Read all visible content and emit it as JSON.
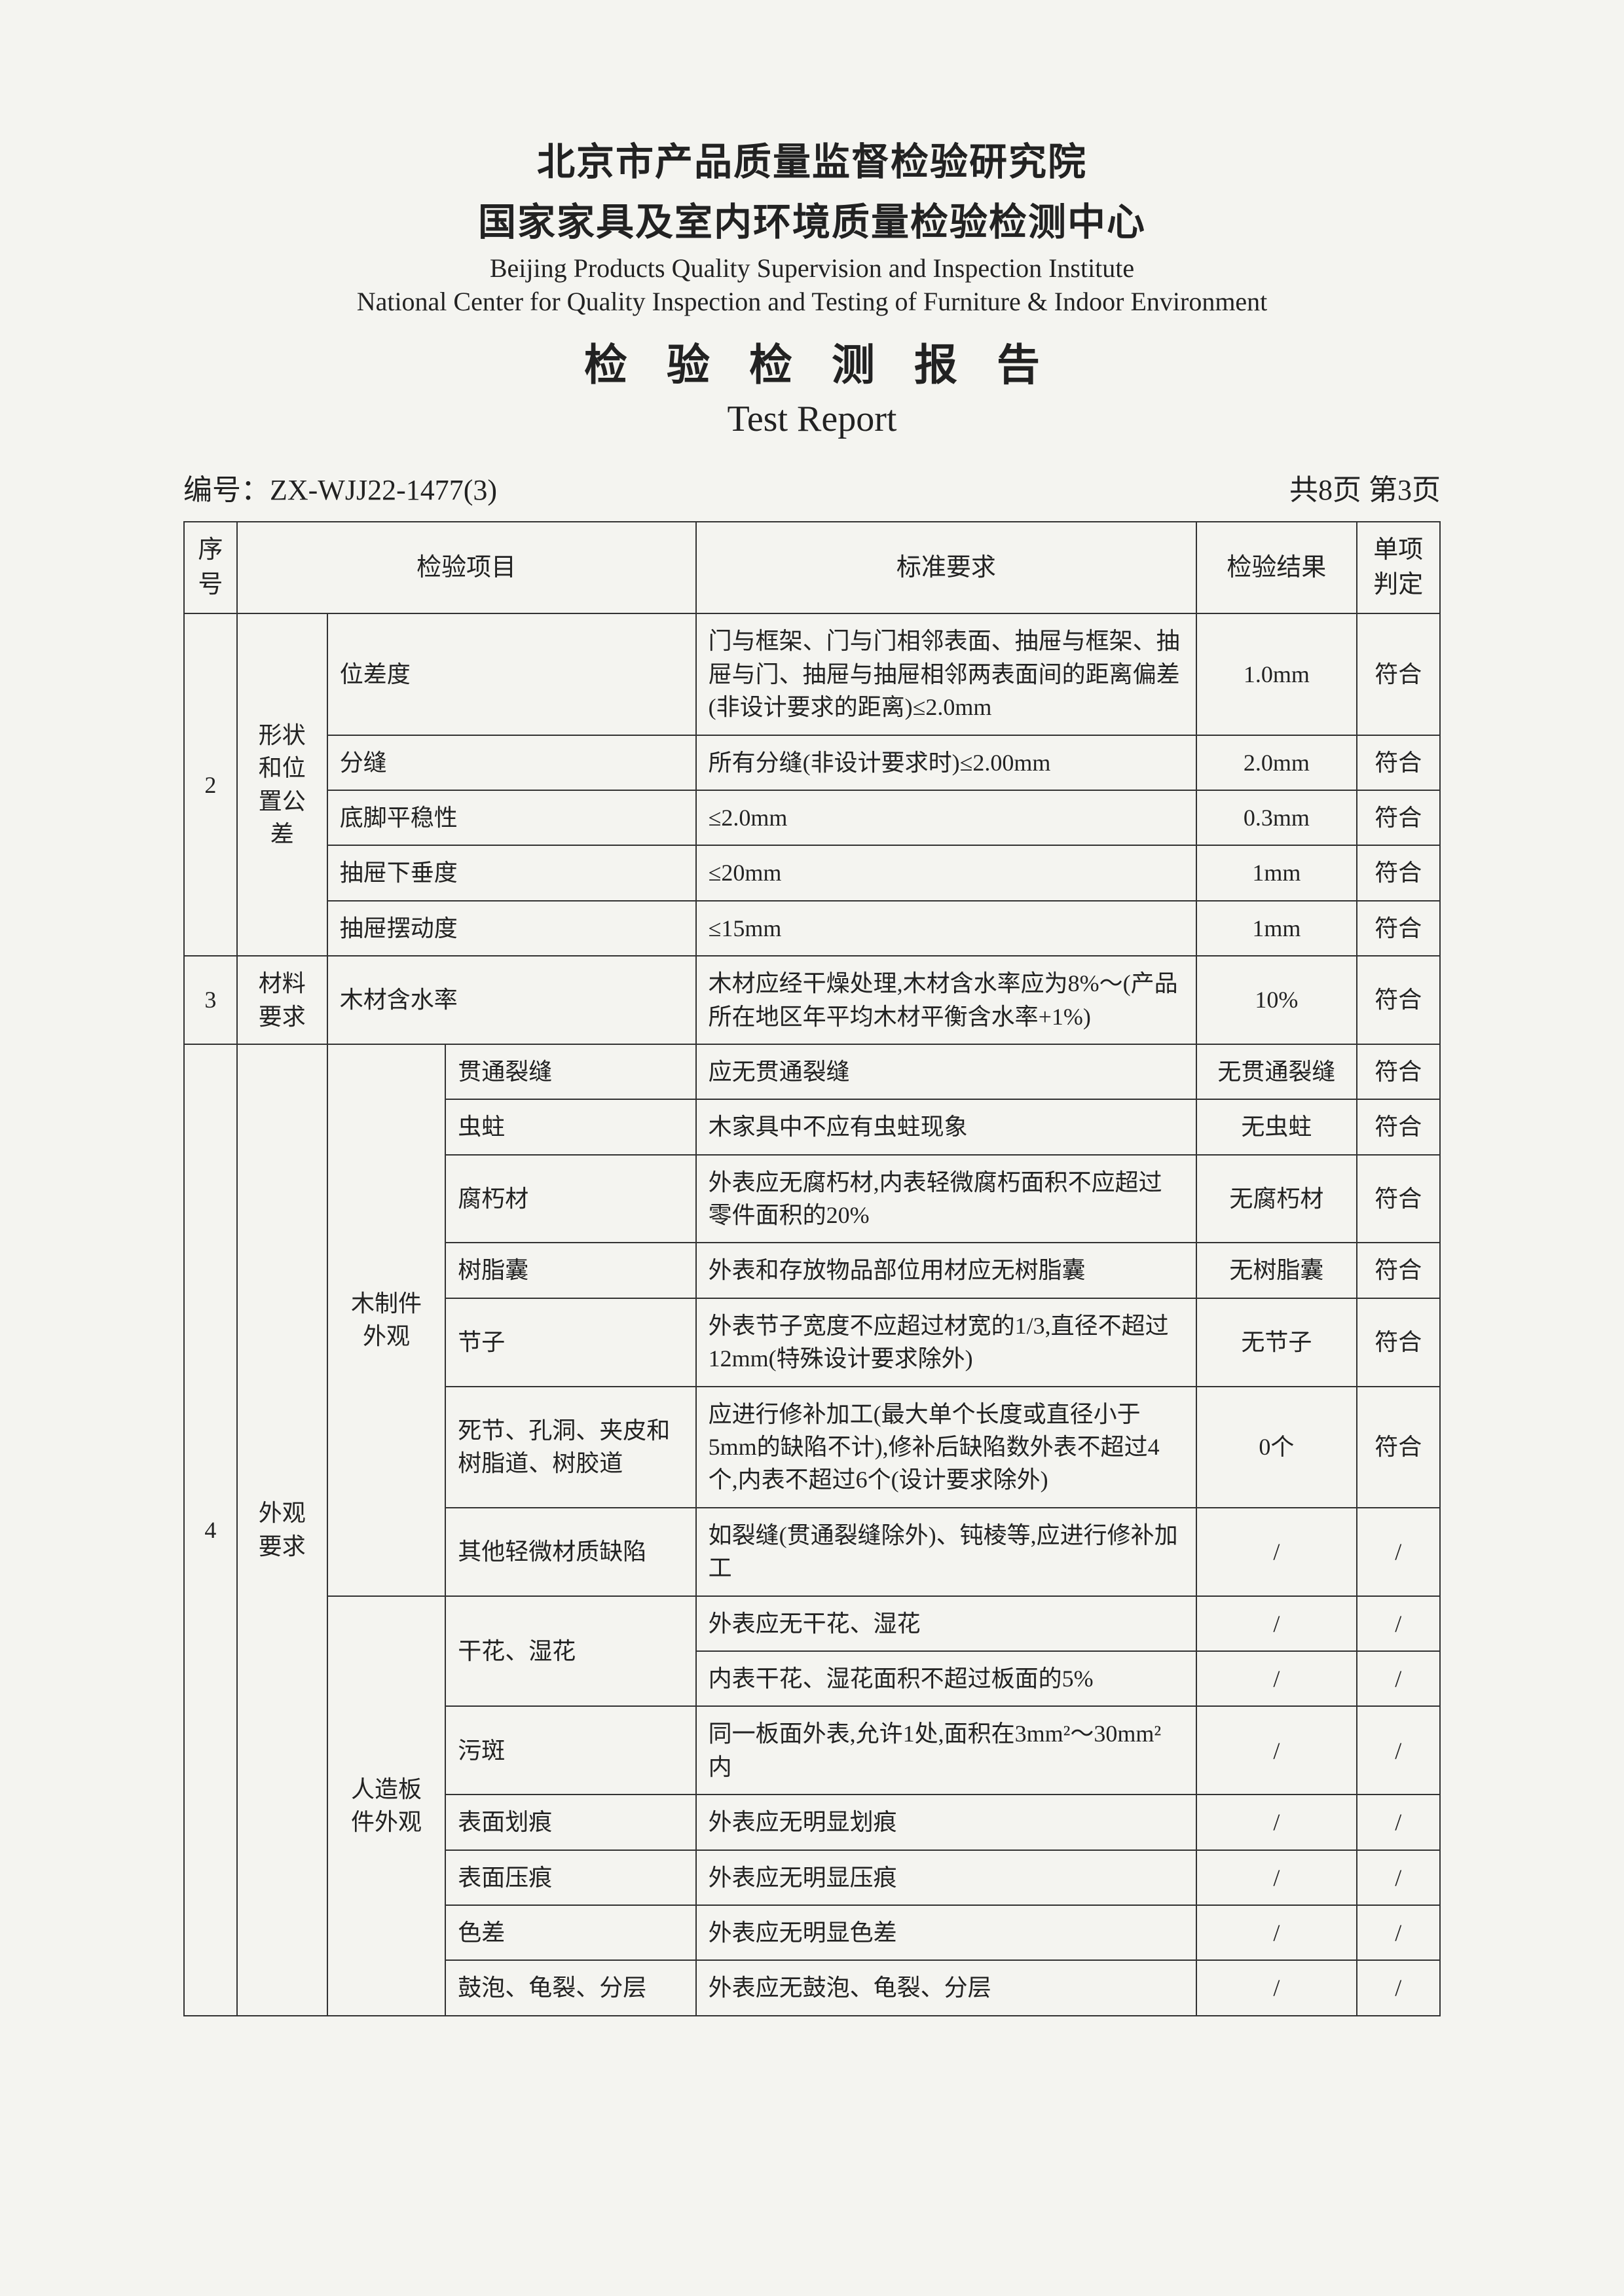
{
  "header": {
    "org_cn1": "北京市产品质量监督检验研究院",
    "org_cn2": "国家家具及室内环境质量检验检测中心",
    "org_en1": "Beijing Products Quality Supervision and Inspection Institute",
    "org_en2": "National Center for Quality Inspection and Testing of Furniture &  Indoor Environment",
    "title_cn": "检验检测报告",
    "title_en": "Test Report"
  },
  "meta": {
    "number_label": "编号：",
    "number": "ZX-WJJ22-1477(3)",
    "page": "共8页  第3页"
  },
  "columns": {
    "seq": "序号",
    "item": "检验项目",
    "req": "标准要求",
    "result": "检验结果",
    "judge": "单项判定"
  },
  "g2": {
    "seq": "2",
    "group": "形状和位置公差",
    "rows": [
      {
        "item": "位差度",
        "req": "门与框架、门与门相邻表面、抽屉与框架、抽屉与门、抽屉与抽屉相邻两表面间的距离偏差(非设计要求的距离)≤2.0mm",
        "result": "1.0mm",
        "judge": "符合"
      },
      {
        "item": "分缝",
        "req": "所有分缝(非设计要求时)≤2.00mm",
        "result": "2.0mm",
        "judge": "符合"
      },
      {
        "item": "底脚平稳性",
        "req": "≤2.0mm",
        "result": "0.3mm",
        "judge": "符合"
      },
      {
        "item": "抽屉下垂度",
        "req": "≤20mm",
        "result": "1mm",
        "judge": "符合"
      },
      {
        "item": "抽屉摆动度",
        "req": "≤15mm",
        "result": "1mm",
        "judge": "符合"
      }
    ]
  },
  "g3": {
    "seq": "3",
    "group": "材料要求",
    "item": "木材含水率",
    "req": "木材应经干燥处理,木材含水率应为8%～(产品所在地区年平均木材平衡含水率+1%)",
    "result": "10%",
    "judge": "符合"
  },
  "g4": {
    "seq": "4",
    "group": "外观要求",
    "sub1": {
      "label": "木制件外观",
      "rows": [
        {
          "item": "贯通裂缝",
          "req": "应无贯通裂缝",
          "result": "无贯通裂缝",
          "judge": "符合"
        },
        {
          "item": "虫蛀",
          "req": "木家具中不应有虫蛀现象",
          "result": "无虫蛀",
          "judge": "符合"
        },
        {
          "item": "腐朽材",
          "req": "外表应无腐朽材,内表轻微腐朽面积不应超过零件面积的20%",
          "result": "无腐朽材",
          "judge": "符合"
        },
        {
          "item": "树脂囊",
          "req": "外表和存放物品部位用材应无树脂囊",
          "result": "无树脂囊",
          "judge": "符合"
        },
        {
          "item": "节子",
          "req": "外表节子宽度不应超过材宽的1/3,直径不超过12mm(特殊设计要求除外)",
          "result": "无节子",
          "judge": "符合"
        },
        {
          "item": "死节、孔洞、夹皮和树脂道、树胶道",
          "req": "应进行修补加工(最大单个长度或直径小于5mm的缺陷不计),修补后缺陷数外表不超过4个,内表不超过6个(设计要求除外)",
          "result": "0个",
          "judge": "符合"
        },
        {
          "item": "其他轻微材质缺陷",
          "req": "如裂缝(贯通裂缝除外)、钝棱等,应进行修补加工",
          "result": "/",
          "judge": "/"
        }
      ]
    },
    "sub2": {
      "label": "人造板件外观",
      "rows": [
        {
          "item": "干花、湿花",
          "req": "外表应无干花、湿花",
          "result": "/",
          "judge": "/",
          "rowspan": 2
        },
        {
          "item": "",
          "req": "内表干花、湿花面积不超过板面的5%",
          "result": "/",
          "judge": "/"
        },
        {
          "item": "污斑",
          "req": "同一板面外表,允许1处,面积在3mm²～30mm²内",
          "result": "/",
          "judge": "/"
        },
        {
          "item": "表面划痕",
          "req": "外表应无明显划痕",
          "result": "/",
          "judge": "/"
        },
        {
          "item": "表面压痕",
          "req": "外表应无明显压痕",
          "result": "/",
          "judge": "/"
        },
        {
          "item": "色差",
          "req": "外表应无明显色差",
          "result": "/",
          "judge": "/"
        },
        {
          "item": "鼓泡、龟裂、分层",
          "req": "外表应无鼓泡、龟裂、分层",
          "result": "/",
          "judge": "/"
        }
      ]
    }
  }
}
